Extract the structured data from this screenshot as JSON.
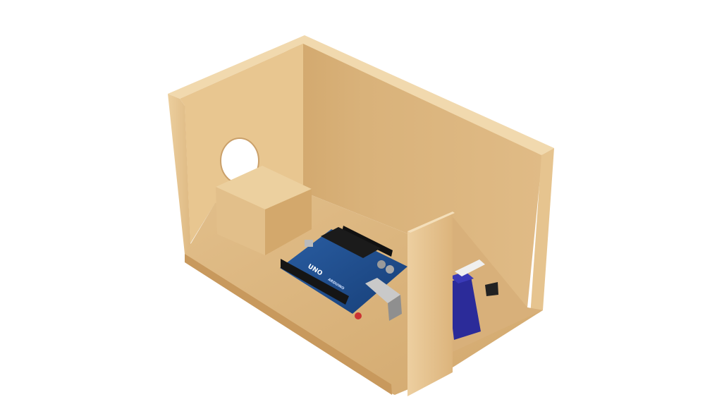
{
  "scene": {
    "background": "#ffffff",
    "wood_light": "#e9c793",
    "wood_mid": "#d7ad72",
    "wood_dark": "#c39354",
    "board_color": "#1f4e8f",
    "servo_color": "#2c2c9a"
  },
  "board": {
    "logo_text": "UNO",
    "brand_text": "ARDUINO"
  },
  "objects": {
    "box": "wooden-box",
    "block": "wood-block",
    "microcontroller": "arduino-board",
    "actuator": "servo-motor",
    "opening": "round-hole"
  }
}
